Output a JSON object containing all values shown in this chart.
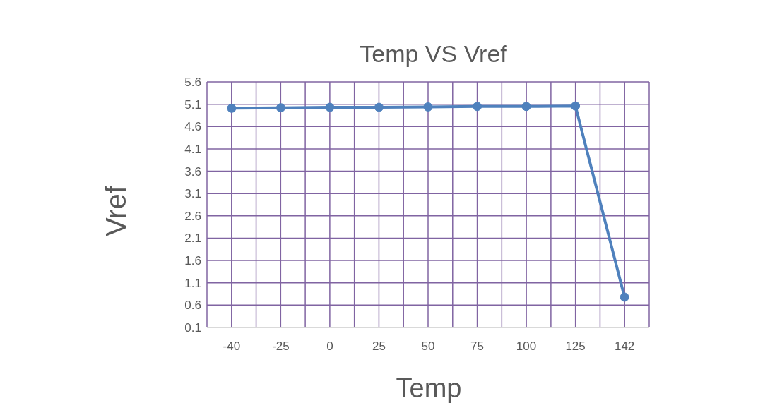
{
  "chart_data": {
    "type": "line",
    "title": "Temp VS Vref",
    "xlabel": "Temp",
    "ylabel": "Vref",
    "categories": [
      "-40",
      "-25",
      "0",
      "25",
      "50",
      "75",
      "100",
      "125",
      "142"
    ],
    "series": [
      {
        "color": "#4f81bd",
        "values": [
          5.01,
          5.02,
          5.03,
          5.03,
          5.04,
          5.05,
          5.05,
          5.06,
          0.78
        ]
      }
    ],
    "ylim": [
      0.1,
      5.6
    ],
    "yticks": [
      0.1,
      0.6,
      1.1,
      1.6,
      2.1,
      2.6,
      3.1,
      3.6,
      4.1,
      4.6,
      5.1,
      5.6
    ],
    "grid": true,
    "legend": false,
    "marker": "circle",
    "line_style": "solid"
  }
}
